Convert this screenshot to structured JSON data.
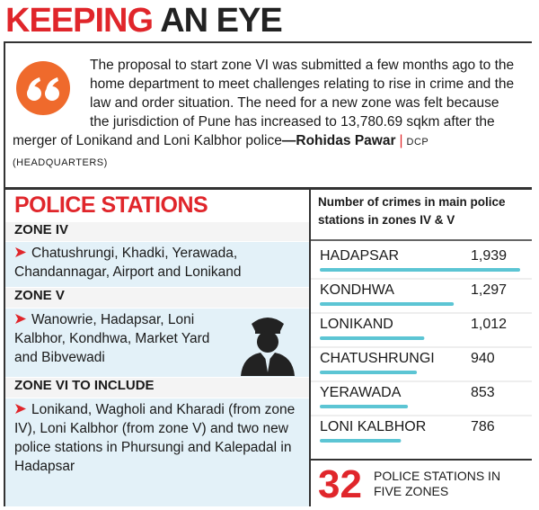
{
  "header": {
    "title_part1": "KEEPING",
    "title_part2": "AN EYE"
  },
  "quote": {
    "text": "The proposal to start zone VI was submitted a few months ago to the home department to meet challenges relating to rise in crime and the law and order situation. The need for a new zone was felt because the jurisdiction of Pune has increased to 13,780.69 sqkm after the merger of Lonikand and Loni Kalbhor police",
    "author": "—Rohidas Pawar",
    "separator": "|",
    "role": "DCP (HEADQUARTERS)"
  },
  "police_stations": {
    "title": "POLICE STATIONS",
    "zones": [
      {
        "name": "ZONE IV",
        "stations": "Chatushrungi, Khadki, Yerawada, Chandannagar, Airport and Lonikand"
      },
      {
        "name": "ZONE V",
        "stations": "Wanowrie, Hadapsar, Loni Kalbhor, Kondhwa, Market Yard and Bibvewadi"
      },
      {
        "name": "ZONE VI TO INCLUDE",
        "stations": "Lonikand, Wagholi and Kharadi (from zone IV), Loni Kalbhor (from zone V) and two new police stations in Phursungi and Kalepadal in Hadapsar"
      }
    ]
  },
  "chart_data": {
    "type": "bar",
    "orientation": "horizontal",
    "title": "Number of crimes in main police stations in zones IV & V",
    "categories": [
      "HADAPSAR",
      "KONDHWA",
      "LONIKAND",
      "CHATUSHRUNGI",
      "YERAWADA",
      "LONI KALBHOR"
    ],
    "values": [
      1939,
      1297,
      1012,
      940,
      853,
      786
    ],
    "value_labels": [
      "1,939",
      "1,297",
      "1,012",
      "940",
      "853",
      "786"
    ],
    "color": "#5cc5d4"
  },
  "footer": {
    "count": "32",
    "label": "POLICE STATIONS IN FIVE ZONES"
  }
}
